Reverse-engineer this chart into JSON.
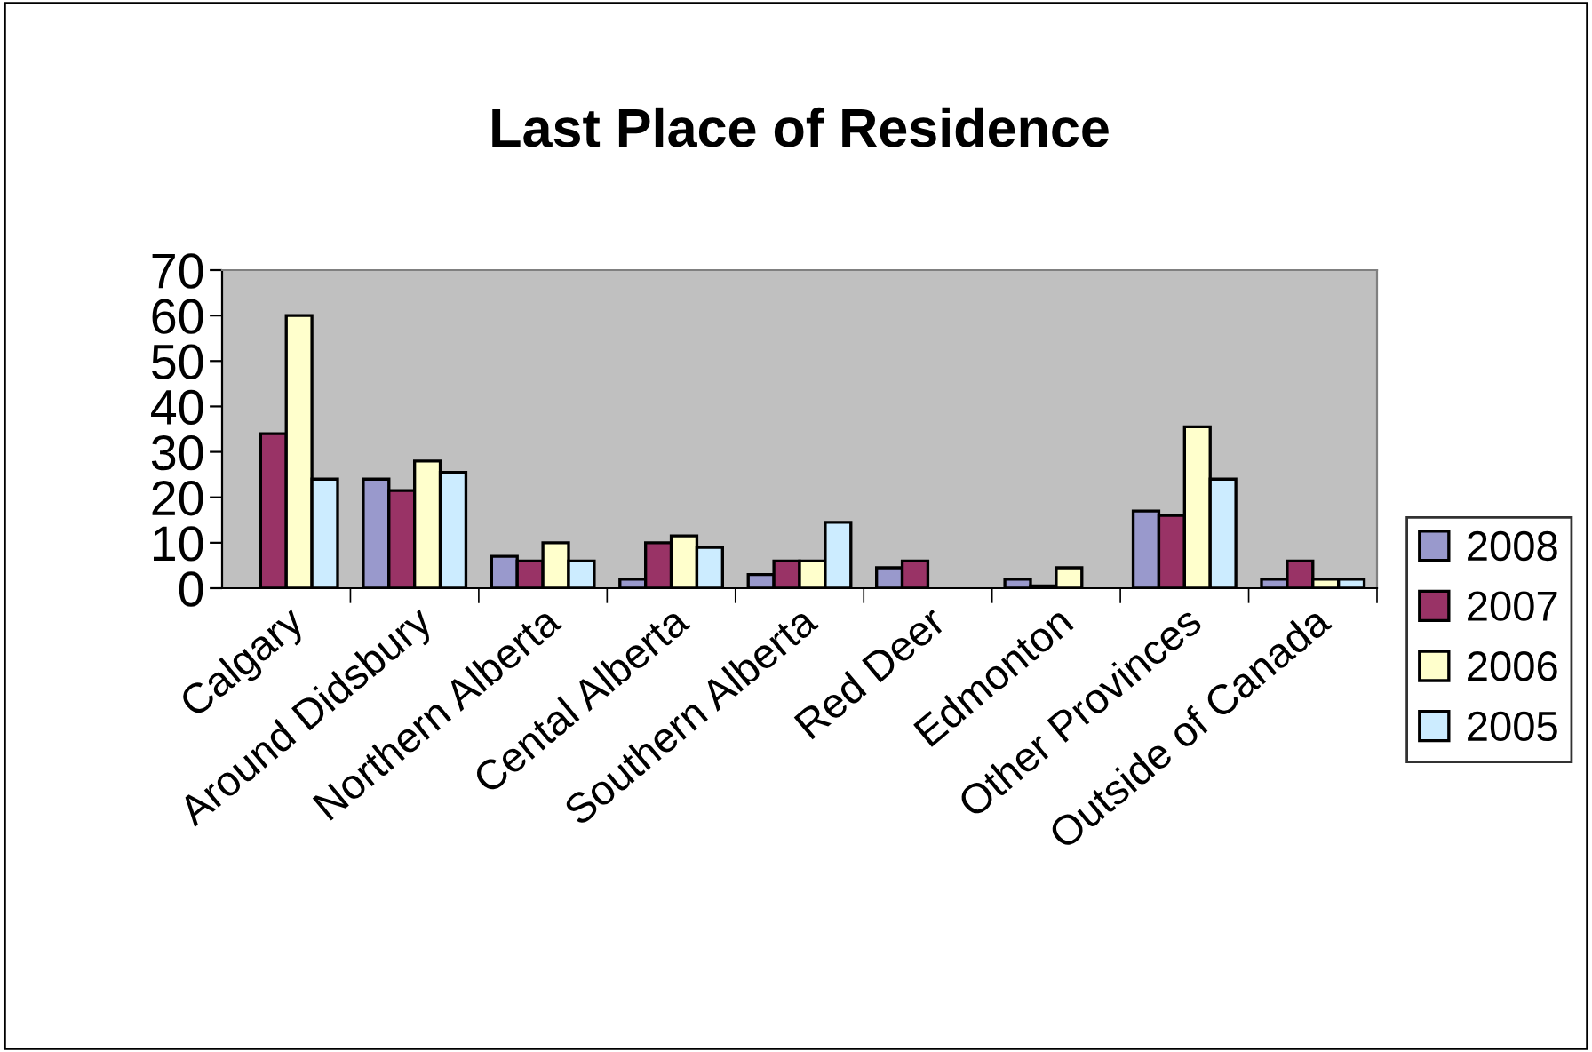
{
  "chart_data": {
    "type": "bar",
    "title": "Last Place of Residence",
    "categories": [
      "Calgary",
      "Around Didsbury",
      "Northern Alberta",
      "Cental Alberta",
      "Southern Alberta",
      "Red Deer",
      "Edmonton",
      "Other Provinces",
      "Outside of Canada"
    ],
    "series": [
      {
        "name": "2008",
        "color": "#9999cc",
        "values": [
          null,
          24,
          7,
          2,
          3,
          4.5,
          2,
          17,
          2
        ]
      },
      {
        "name": "2007",
        "color": "#993366",
        "values": [
          34,
          21.5,
          6,
          10,
          6,
          6,
          0.5,
          16,
          6
        ]
      },
      {
        "name": "2006",
        "color": "#ffffcc",
        "values": [
          60,
          28,
          10,
          11.5,
          6,
          null,
          4.5,
          35.5,
          2
        ]
      },
      {
        "name": "2005",
        "color": "#ccecff",
        "values": [
          24,
          25.5,
          6,
          9,
          14.5,
          null,
          null,
          24,
          2
        ]
      }
    ],
    "ylim": [
      0,
      70
    ],
    "yticks": [
      0,
      10,
      20,
      30,
      40,
      50,
      60,
      70
    ],
    "grid": false,
    "legend": "right"
  }
}
